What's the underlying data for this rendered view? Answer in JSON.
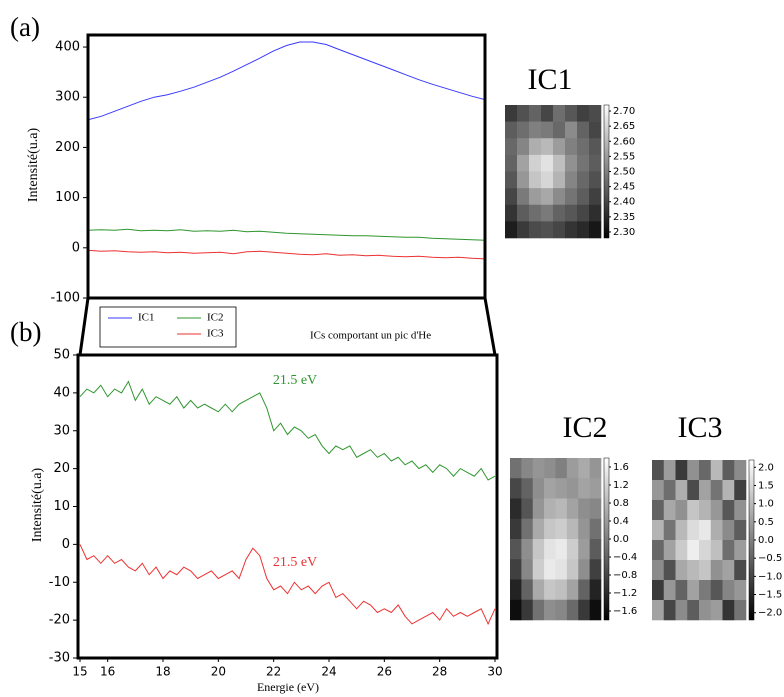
{
  "chart_data": [
    {
      "type": "line",
      "panel_label": "(a)",
      "y_label": "Intensité(u.a)",
      "xlim": [
        15,
        30
      ],
      "ylim": [
        -100,
        424
      ],
      "yticks": [
        -100,
        0,
        100,
        200,
        300,
        400
      ],
      "x": [
        15,
        15.5,
        16,
        16.5,
        17,
        17.5,
        18,
        18.5,
        19,
        19.5,
        20,
        20.5,
        21,
        21.5,
        22,
        22.5,
        23,
        23.5,
        24,
        24.5,
        25,
        25.5,
        26,
        26.5,
        27,
        27.5,
        28,
        28.5,
        29,
        29.5,
        30
      ],
      "series": [
        {
          "name": "IC1",
          "color": "#3a3aff",
          "values": [
            255,
            262,
            272,
            282,
            292,
            300,
            305,
            312,
            320,
            330,
            340,
            352,
            365,
            378,
            392,
            403,
            410,
            410,
            405,
            395,
            385,
            375,
            365,
            355,
            345,
            335,
            326,
            318,
            310,
            302,
            295
          ]
        },
        {
          "name": "IC2",
          "color": "#2e962e",
          "values": [
            35,
            36,
            35,
            37,
            34,
            35,
            34,
            36,
            33,
            34,
            33,
            35,
            32,
            33,
            31,
            29,
            28,
            27,
            26,
            25,
            24,
            24,
            23,
            22,
            21,
            21,
            19,
            18,
            17,
            16,
            15
          ]
        },
        {
          "name": "IC3",
          "color": "#ee3030",
          "values": [
            -5,
            -7,
            -6,
            -8,
            -9,
            -8,
            -10,
            -9,
            -11,
            -10,
            -9,
            -12,
            -8,
            -7,
            -9,
            -11,
            -13,
            -14,
            -12,
            -15,
            -14,
            -16,
            -15,
            -17,
            -18,
            -17,
            -19,
            -20,
            -19,
            -21,
            -22
          ]
        }
      ],
      "annotations": [
        {
          "text": "ICs comportant un pic d'He",
          "color": "#000000"
        }
      ]
    },
    {
      "type": "line",
      "panel_label": "(b)",
      "x_label": "Energie (eV)",
      "y_label": "Intensité(u.a)",
      "xlim": [
        15,
        30
      ],
      "ylim": [
        -30,
        50
      ],
      "xticks": [
        15,
        16,
        18,
        20,
        22,
        24,
        26,
        28,
        30
      ],
      "yticks": [
        -30,
        -20,
        -10,
        0,
        10,
        20,
        30,
        40,
        50
      ],
      "x": [
        15,
        15.25,
        15.5,
        15.75,
        16,
        16.25,
        16.5,
        16.75,
        17,
        17.25,
        17.5,
        17.75,
        18,
        18.25,
        18.5,
        18.75,
        19,
        19.25,
        19.5,
        19.75,
        20,
        20.25,
        20.5,
        20.75,
        21,
        21.25,
        21.5,
        21.75,
        22,
        22.25,
        22.5,
        22.75,
        23,
        23.25,
        23.5,
        23.75,
        24,
        24.25,
        24.5,
        24.75,
        25,
        25.25,
        25.5,
        25.75,
        26,
        26.25,
        26.5,
        26.75,
        27,
        27.25,
        27.5,
        27.75,
        28,
        28.25,
        28.5,
        28.75,
        29,
        29.25,
        29.5,
        29.75,
        30
      ],
      "series": [
        {
          "color": "#2e962e",
          "values": [
            39,
            41,
            40,
            42,
            39,
            41,
            40,
            43,
            38,
            41,
            37,
            39,
            38,
            37,
            39,
            36,
            38,
            36,
            37,
            36,
            35,
            37,
            35,
            37,
            38,
            39,
            40,
            36,
            30,
            32,
            29,
            31,
            30,
            28,
            29,
            26,
            24,
            26,
            25,
            26,
            23,
            24,
            25,
            23,
            24,
            22,
            23,
            21,
            22,
            20,
            21,
            19,
            21,
            20,
            18,
            20,
            19,
            18,
            20,
            17,
            18
          ]
        },
        {
          "color": "#ee3030",
          "values": [
            0,
            -4,
            -3,
            -5,
            -3,
            -5,
            -4,
            -6,
            -7,
            -5,
            -8,
            -6,
            -9,
            -7,
            -8,
            -6,
            -7,
            -9,
            -8,
            -7,
            -9,
            -8,
            -7,
            -9,
            -4,
            -1,
            -3,
            -9,
            -12,
            -11,
            -13,
            -10,
            -12,
            -11,
            -13,
            -11,
            -10,
            -14,
            -13,
            -15,
            -17,
            -15,
            -16,
            -18,
            -17,
            -18,
            -16,
            -19,
            -21,
            -20,
            -19,
            -18,
            -20,
            -17,
            -19,
            -18,
            -19,
            -18,
            -17,
            -21,
            -17
          ]
        }
      ],
      "annotations": [
        {
          "text": "21.5 eV",
          "color": "#2e962e"
        },
        {
          "text": "21.5 eV",
          "color": "#ee3030"
        }
      ]
    },
    {
      "type": "heatmap",
      "title": "IC1",
      "clim": [
        2.28,
        2.72
      ],
      "cticks": [
        {
          "value": 2.7,
          "label": "2.70"
        },
        2.65,
        {
          "value": 2.6,
          "label": "2.60"
        },
        2.55,
        {
          "value": 2.5,
          "label": "2.50"
        },
        2.45,
        {
          "value": 2.4,
          "label": "2.40"
        },
        2.35,
        {
          "value": 2.3,
          "label": "2.30"
        }
      ],
      "z": [
        [
          2.38,
          2.42,
          2.45,
          2.4,
          2.47,
          2.43,
          2.39,
          2.41
        ],
        [
          2.44,
          2.47,
          2.5,
          2.49,
          2.46,
          2.52,
          2.45,
          2.4
        ],
        [
          2.46,
          2.51,
          2.58,
          2.6,
          2.55,
          2.5,
          2.47,
          2.43
        ],
        [
          2.45,
          2.56,
          2.64,
          2.67,
          2.61,
          2.53,
          2.48,
          2.44
        ],
        [
          2.43,
          2.54,
          2.62,
          2.65,
          2.59,
          2.51,
          2.46,
          2.42
        ],
        [
          2.4,
          2.49,
          2.55,
          2.57,
          2.52,
          2.48,
          2.44,
          2.39
        ],
        [
          2.37,
          2.44,
          2.47,
          2.49,
          2.45,
          2.43,
          2.4,
          2.36
        ],
        [
          2.33,
          2.38,
          2.41,
          2.42,
          2.4,
          2.37,
          2.35,
          2.32
        ]
      ]
    },
    {
      "type": "heatmap",
      "title": "IC2",
      "clim": [
        -1.8,
        1.8
      ],
      "cticks": [
        1.6,
        1.2,
        0.8,
        0.4,
        {
          "value": 0,
          "label": "0.0"
        },
        {
          "value": -0.4,
          "label": "−0.4"
        },
        {
          "value": -0.8,
          "label": "−0.8"
        },
        {
          "value": -1.2,
          "label": "−1.2"
        },
        {
          "value": -1.6,
          "label": "−1.6"
        }
      ],
      "z": [
        [
          -0.2,
          0.1,
          0.3,
          0.2,
          0.0,
          0.4,
          0.6,
          0.3
        ],
        [
          -0.8,
          -0.4,
          0.2,
          0.5,
          0.4,
          0.3,
          0.5,
          0.4
        ],
        [
          -1.2,
          -0.6,
          0.3,
          0.7,
          0.8,
          0.5,
          0.2,
          0.1
        ],
        [
          -1.0,
          -0.2,
          0.6,
          1.0,
          1.1,
          0.8,
          0.3,
          -0.2
        ],
        [
          -0.6,
          0.2,
          1.0,
          1.4,
          1.5,
          1.1,
          0.4,
          -0.5
        ],
        [
          -0.9,
          0.1,
          1.1,
          1.5,
          1.4,
          1.0,
          0.2,
          -0.9
        ],
        [
          -1.3,
          -0.4,
          0.6,
          1.0,
          0.9,
          0.5,
          -0.4,
          -1.3
        ],
        [
          -1.6,
          -1.0,
          -0.2,
          0.2,
          0.1,
          -0.3,
          -1.0,
          -1.6
        ]
      ]
    },
    {
      "type": "heatmap",
      "title": "IC3",
      "clim": [
        -2.2,
        2.2
      ],
      "cticks": [
        {
          "value": 2,
          "label": "2.0"
        },
        1.5,
        {
          "value": 1,
          "label": "1.0"
        },
        0.5,
        {
          "value": 0,
          "label": "0.0"
        },
        {
          "value": -0.5,
          "label": "−0.5"
        },
        {
          "value": -1,
          "label": "−1.0"
        },
        {
          "value": -1.5,
          "label": "−1.5"
        },
        {
          "value": -2,
          "label": "−2.0"
        }
      ],
      "z": [
        [
          -0.8,
          0.5,
          -1.2,
          0.3,
          -0.4,
          1.0,
          -0.6,
          0.2
        ],
        [
          0.4,
          -0.3,
          0.8,
          -0.9,
          0.6,
          -0.2,
          0.9,
          -1.1
        ],
        [
          -0.5,
          0.7,
          0.3,
          1.2,
          0.9,
          0.4,
          -0.7,
          0.3
        ],
        [
          0.9,
          -0.2,
          1.0,
          1.6,
          1.8,
          0.8,
          0.2,
          -0.6
        ],
        [
          -0.4,
          0.6,
          1.3,
          1.9,
          1.5,
          1.1,
          -0.3,
          0.5
        ],
        [
          0.2,
          -0.8,
          0.7,
          1.0,
          1.2,
          0.3,
          0.6,
          -0.9
        ],
        [
          -1.2,
          0.4,
          -0.5,
          0.6,
          -0.1,
          -0.7,
          0.1,
          0.4
        ],
        [
          0.6,
          -1.0,
          0.2,
          -0.6,
          0.3,
          0.5,
          -1.3,
          -0.2
        ]
      ]
    }
  ]
}
